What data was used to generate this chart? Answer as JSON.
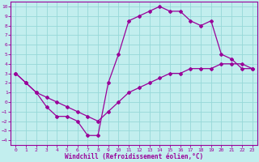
{
  "xlabel": "Windchill (Refroidissement éolien,°C)",
  "bg_color": "#c2eeee",
  "grid_color": "#96d8d8",
  "line_color": "#990099",
  "xlim": [
    0,
    23
  ],
  "ylim": [
    -4,
    10
  ],
  "xticks": [
    0,
    1,
    2,
    3,
    4,
    5,
    6,
    7,
    8,
    9,
    10,
    11,
    12,
    13,
    14,
    15,
    16,
    17,
    18,
    19,
    20,
    21,
    22,
    23
  ],
  "yticks": [
    -4,
    -3,
    -2,
    -1,
    0,
    1,
    2,
    3,
    4,
    5,
    6,
    7,
    8,
    9,
    10
  ],
  "curve1_x": [
    0,
    1,
    2,
    3,
    4,
    5,
    6,
    7,
    8,
    9,
    10,
    11,
    12,
    13,
    14,
    15,
    16,
    17,
    18,
    19,
    20,
    21,
    22,
    23
  ],
  "curve1_y": [
    3.0,
    2.0,
    1.0,
    -0.5,
    -1.5,
    -1.5,
    -2.0,
    -3.5,
    -3.5,
    2.0,
    5.0,
    8.5,
    9.0,
    9.5,
    10.0,
    9.5,
    9.5,
    8.5,
    8.0,
    8.5,
    5.0,
    4.5,
    3.5,
    3.5
  ],
  "curve2_x": [
    0,
    1,
    2,
    3,
    4,
    5,
    6,
    7,
    8,
    9,
    10,
    11,
    12,
    13,
    14,
    15,
    16,
    17,
    18,
    19,
    20,
    21,
    22,
    23
  ],
  "curve2_y": [
    3.0,
    2.0,
    1.0,
    0.5,
    0.0,
    -0.5,
    -1.0,
    -1.5,
    -2.0,
    -1.0,
    0.0,
    1.0,
    1.5,
    2.0,
    2.5,
    3.0,
    3.0,
    3.5,
    3.5,
    3.5,
    4.0,
    4.0,
    4.0,
    3.5
  ],
  "marker_style": "D",
  "marker_size": 2.0,
  "line_width": 0.9,
  "tick_fontsize": 4.5,
  "xlabel_fontsize": 5.5
}
